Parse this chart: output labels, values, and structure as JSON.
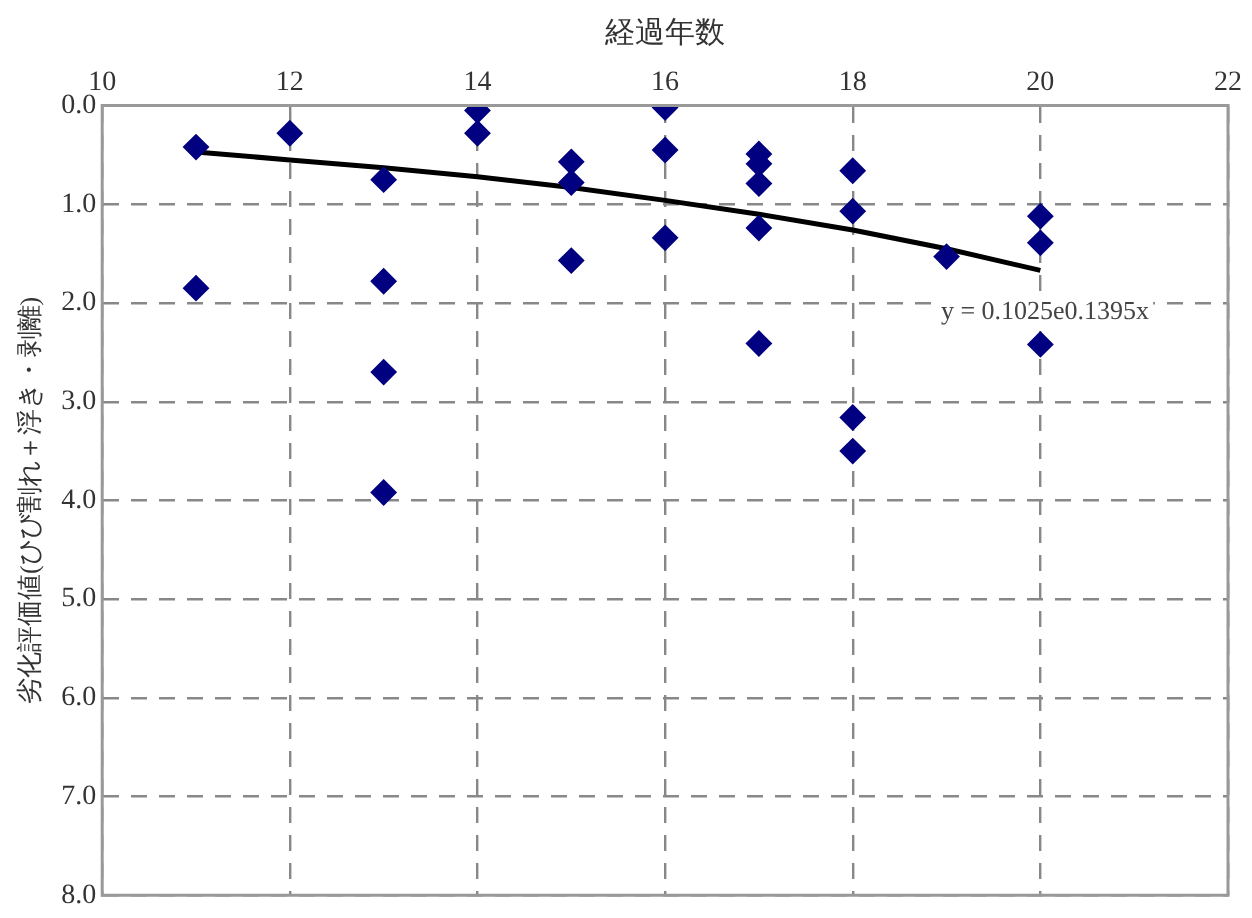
{
  "chart_data": {
    "type": "scatter",
    "xlabel": "経過年数",
    "ylabel": "劣化評価値(ひび割れ＋浮き・剥離)",
    "xlim": [
      10,
      22
    ],
    "xticks": [
      10,
      12,
      14,
      16,
      18,
      20,
      22
    ],
    "ylim": [
      8,
      0
    ],
    "yticks": [
      {
        "value": 0,
        "label": "0.0"
      },
      {
        "value": 1,
        "label": "1.0"
      },
      {
        "value": 2,
        "label": "2.0"
      },
      {
        "value": 3,
        "label": "3.0"
      },
      {
        "value": 4,
        "label": "4.0"
      },
      {
        "value": 5,
        "label": "5.0"
      },
      {
        "value": 6,
        "label": "6.0"
      },
      {
        "value": 7,
        "label": "7.0"
      },
      {
        "value": 8,
        "label": "8.0"
      }
    ],
    "grid": true,
    "marker": "diamond",
    "series": [
      {
        "color": "#000080",
        "x": [
          11,
          11,
          12,
          13,
          13,
          13,
          13,
          14,
          14,
          15,
          15,
          15,
          16,
          16,
          16,
          17,
          17,
          17,
          17,
          17,
          18,
          18,
          18,
          18,
          19,
          20,
          20,
          20
        ],
        "values": [
          0.42,
          1.85,
          0.28,
          0.75,
          1.78,
          2.7,
          3.92,
          0.05,
          0.28,
          0.57,
          0.78,
          1.57,
          0.02,
          0.45,
          1.34,
          0.49,
          0.59,
          0.79,
          1.24,
          2.41,
          0.66,
          1.07,
          3.16,
          3.5,
          1.53,
          1.12,
          1.39,
          2.42
        ]
      },
      {
        "type": "line",
        "color": "#000000",
        "marker": "none",
        "x": [
          11,
          12,
          13,
          14,
          15,
          16,
          17,
          18,
          19,
          20
        ],
        "values": [
          0.47,
          0.55,
          0.63,
          0.72,
          0.83,
          0.96,
          1.1,
          1.26,
          1.45,
          1.67
        ]
      }
    ],
    "annotations": [
      "y = 0.1025e0.1395x"
    ]
  }
}
